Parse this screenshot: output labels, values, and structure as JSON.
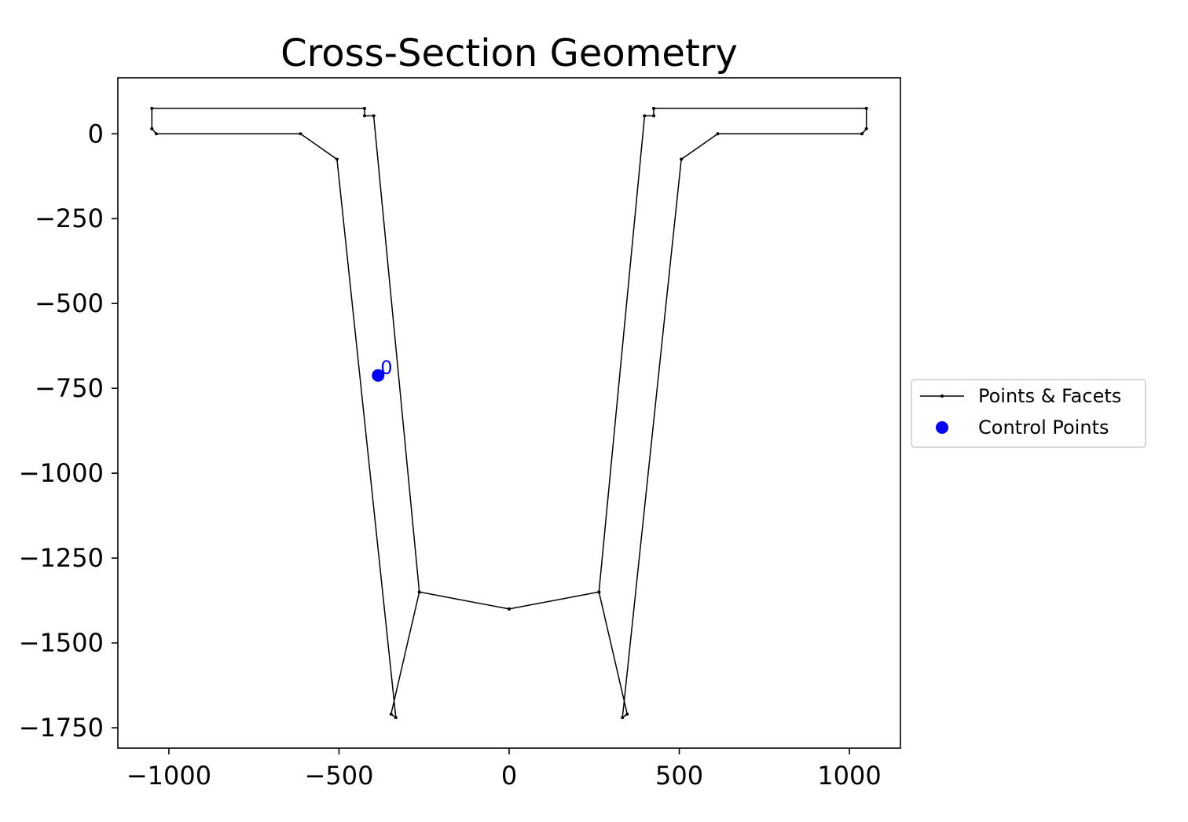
{
  "chart_data": {
    "type": "line",
    "title": "Cross-Section Geometry",
    "xlabel": "",
    "ylabel": "",
    "xlim": [
      -1150,
      1150
    ],
    "ylim": [
      -1810,
      165
    ],
    "x_ticks": [
      -1000,
      -500,
      0,
      500,
      1000
    ],
    "x_tick_labels": [
      "−1000",
      "−500",
      "0",
      "500",
      "1000"
    ],
    "y_ticks": [
      0,
      -250,
      -500,
      -750,
      -1000,
      -1250,
      -1500,
      -1750
    ],
    "y_tick_labels": [
      "0",
      "−250",
      "−500",
      "−750",
      "−1000",
      "−1250",
      "−1500",
      "−1750"
    ],
    "grid": false,
    "legend_position": "center right, outside axes",
    "colors": {
      "facets": "#000000",
      "control_points": "#0000ff"
    },
    "series": [
      {
        "name": "Points & Facets",
        "style": "line-with-small-markers",
        "closed": true,
        "x": [
          -1050,
          -1050,
          -1037,
          -613,
          -506,
          -333,
          -347,
          -264,
          0,
          264,
          347,
          333,
          506,
          613,
          1037,
          1050,
          1050,
          425,
          425,
          398,
          264,
          0,
          -264,
          -398,
          -425,
          -425
        ],
        "y": [
          75,
          15,
          0,
          0,
          -75,
          -1720,
          -1710,
          -1350,
          -1400,
          -1350,
          -1710,
          -1720,
          -75,
          0,
          0,
          15,
          75,
          75,
          53,
          53,
          -1350,
          -1400,
          -1350,
          53,
          53,
          75
        ]
      },
      {
        "name": "Control Points",
        "style": "marker",
        "points": [
          {
            "x": -385,
            "y": -712,
            "label": "0"
          }
        ]
      }
    ]
  }
}
